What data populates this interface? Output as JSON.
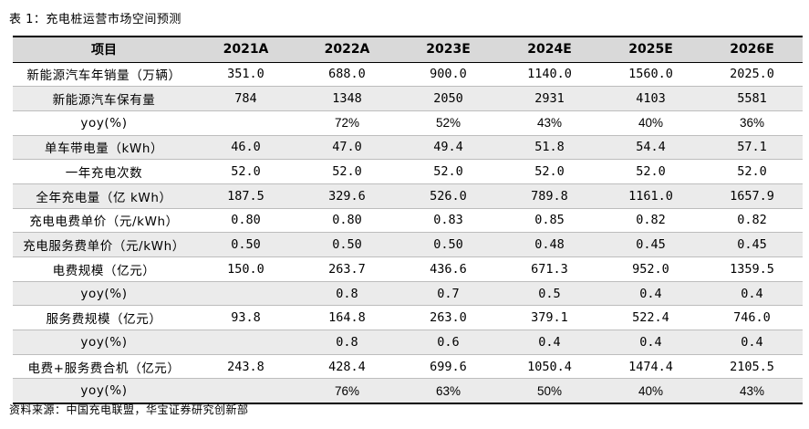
{
  "caption": "表 1：充电桩运营市场空间预测",
  "source": "资料来源：中国充电联盟，华宝证券研究创新部",
  "table": {
    "headers": [
      "项目",
      "2021A",
      "2022A",
      "2023E",
      "2024E",
      "2025E",
      "2026E"
    ],
    "rows": [
      {
        "label": "新能源汽车年销量（万辆）",
        "kind": "num",
        "values": [
          "351.0",
          "688.0",
          "900.0",
          "1140.0",
          "1560.0",
          "2025.0"
        ]
      },
      {
        "label": "新能源汽车保有量",
        "kind": "num",
        "values": [
          "784",
          "1348",
          "2050",
          "2931",
          "4103",
          "5581"
        ]
      },
      {
        "label": "yoy(%)",
        "kind": "pct",
        "values": [
          "",
          "72%",
          "52%",
          "43%",
          "40%",
          "36%"
        ]
      },
      {
        "label": "单车带电量（kWh）",
        "kind": "num",
        "values": [
          "46.0",
          "47.0",
          "49.4",
          "51.8",
          "54.4",
          "57.1"
        ]
      },
      {
        "label": "一年充电次数",
        "kind": "num",
        "values": [
          "52.0",
          "52.0",
          "52.0",
          "52.0",
          "52.0",
          "52.0"
        ]
      },
      {
        "label": "全年充电量（亿 kWh）",
        "kind": "num",
        "values": [
          "187.5",
          "329.6",
          "526.0",
          "789.8",
          "1161.0",
          "1657.9"
        ]
      },
      {
        "label": "充电电费单价（元/kWh）",
        "kind": "num",
        "values": [
          "0.80",
          "0.80",
          "0.83",
          "0.85",
          "0.82",
          "0.82"
        ]
      },
      {
        "label": "充电服务费单价（元/kWh）",
        "kind": "num",
        "values": [
          "0.50",
          "0.50",
          "0.50",
          "0.48",
          "0.45",
          "0.45"
        ]
      },
      {
        "label": "电费规模（亿元）",
        "kind": "num",
        "values": [
          "150.0",
          "263.7",
          "436.6",
          "671.3",
          "952.0",
          "1359.5"
        ]
      },
      {
        "label": "yoy(%)",
        "kind": "num",
        "values": [
          "",
          "0.8",
          "0.7",
          "0.5",
          "0.4",
          "0.4"
        ]
      },
      {
        "label": "服务费规模（亿元）",
        "kind": "num",
        "values": [
          "93.8",
          "164.8",
          "263.0",
          "379.1",
          "522.4",
          "746.0"
        ]
      },
      {
        "label": "yoy(%)",
        "kind": "num",
        "values": [
          "",
          "0.8",
          "0.6",
          "0.4",
          "0.4",
          "0.4"
        ]
      },
      {
        "label": "电费+服务费合机（亿元）",
        "kind": "num",
        "values": [
          "243.8",
          "428.4",
          "699.6",
          "1050.4",
          "1474.4",
          "2105.5"
        ]
      },
      {
        "label": "yoy(%)",
        "kind": "pct",
        "values": [
          "",
          "76%",
          "63%",
          "50%",
          "40%",
          "43%"
        ]
      }
    ]
  }
}
